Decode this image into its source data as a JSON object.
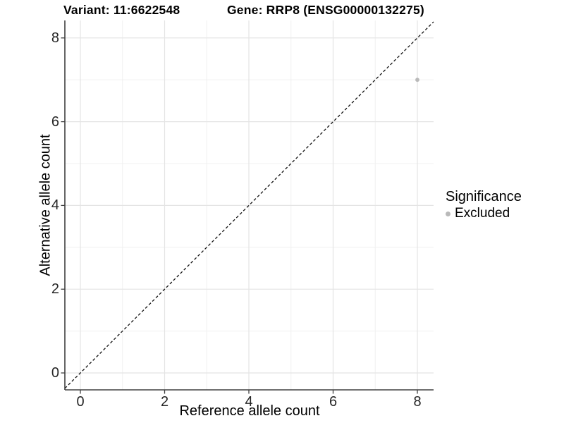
{
  "header": {
    "variant_title": "Variant: 11:6622548",
    "gene_title": "Gene: RRP8 (ENSG00000132275)"
  },
  "chart_data": {
    "type": "scatter",
    "xlabel": "Reference allele count",
    "ylabel": "Alternative allele count",
    "x_ticks": [
      0,
      2,
      4,
      6,
      8
    ],
    "y_ticks": [
      0,
      2,
      4,
      6,
      8
    ],
    "xlim": [
      -0.37,
      8.39
    ],
    "ylim": [
      -0.4,
      8.42
    ],
    "grid": {
      "major": true,
      "minor": true
    },
    "reference_line": {
      "equation": "y = x",
      "style": "dashed",
      "color": "#111111"
    },
    "series": [
      {
        "name": "Excluded",
        "color": "#b9b9b9",
        "points": [
          {
            "x": 8,
            "y": 7
          }
        ]
      }
    ],
    "legend": {
      "title": "Significance",
      "position": "right",
      "items": [
        {
          "label": "Excluded",
          "color": "#b9b9b9"
        }
      ]
    }
  },
  "colors": {
    "background": "#ffffff",
    "grid_major": "#e4e4e4",
    "grid_minor": "#f0f0f0",
    "axis_line": "#404040",
    "tick_label": "#262626",
    "point": "#b9b9b9"
  }
}
